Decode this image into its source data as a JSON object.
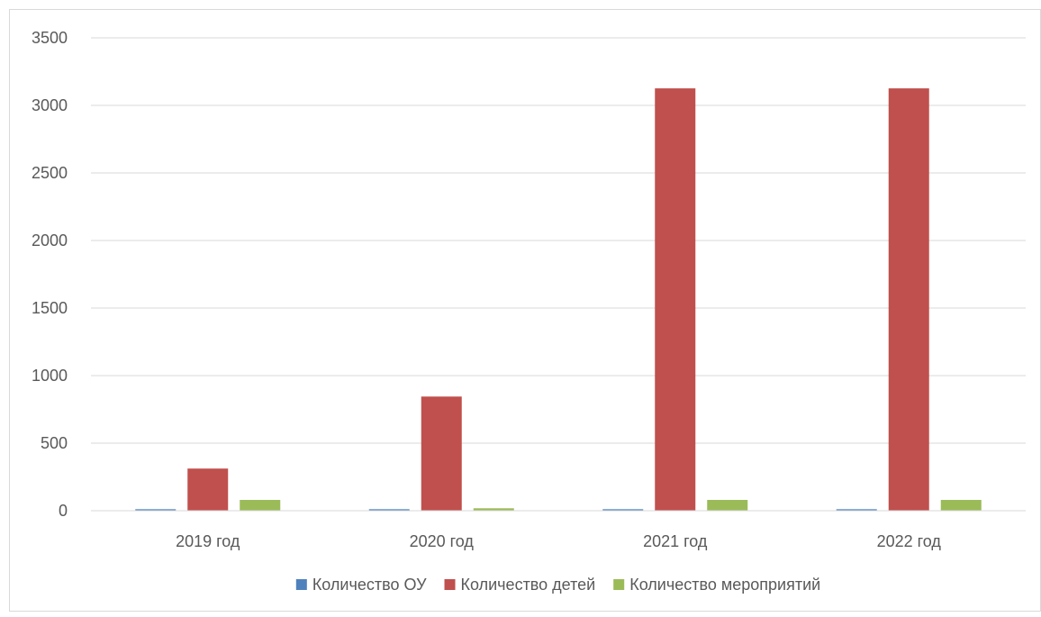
{
  "chart_data": {
    "type": "bar",
    "title": "",
    "xlabel": "",
    "ylabel": "",
    "categories": [
      "2019 год",
      "2020 год",
      "2021 год",
      "2022 год"
    ],
    "series": [
      {
        "name": "Количество ОУ",
        "color": "#4f81bd",
        "values": [
          11,
          11,
          11,
          11
        ]
      },
      {
        "name": "Количество детей",
        "color": "#c0504d",
        "values": [
          312,
          845,
          3126,
          3126
        ]
      },
      {
        "name": "Количество мероприятий",
        "color": "#9bbb59",
        "values": [
          80,
          18,
          80,
          80
        ]
      }
    ],
    "ylim": [
      0,
      3500
    ],
    "yticks": [
      0,
      500,
      1000,
      1500,
      2000,
      2500,
      3000,
      3500
    ],
    "grid": true,
    "legend_position": "bottom"
  }
}
